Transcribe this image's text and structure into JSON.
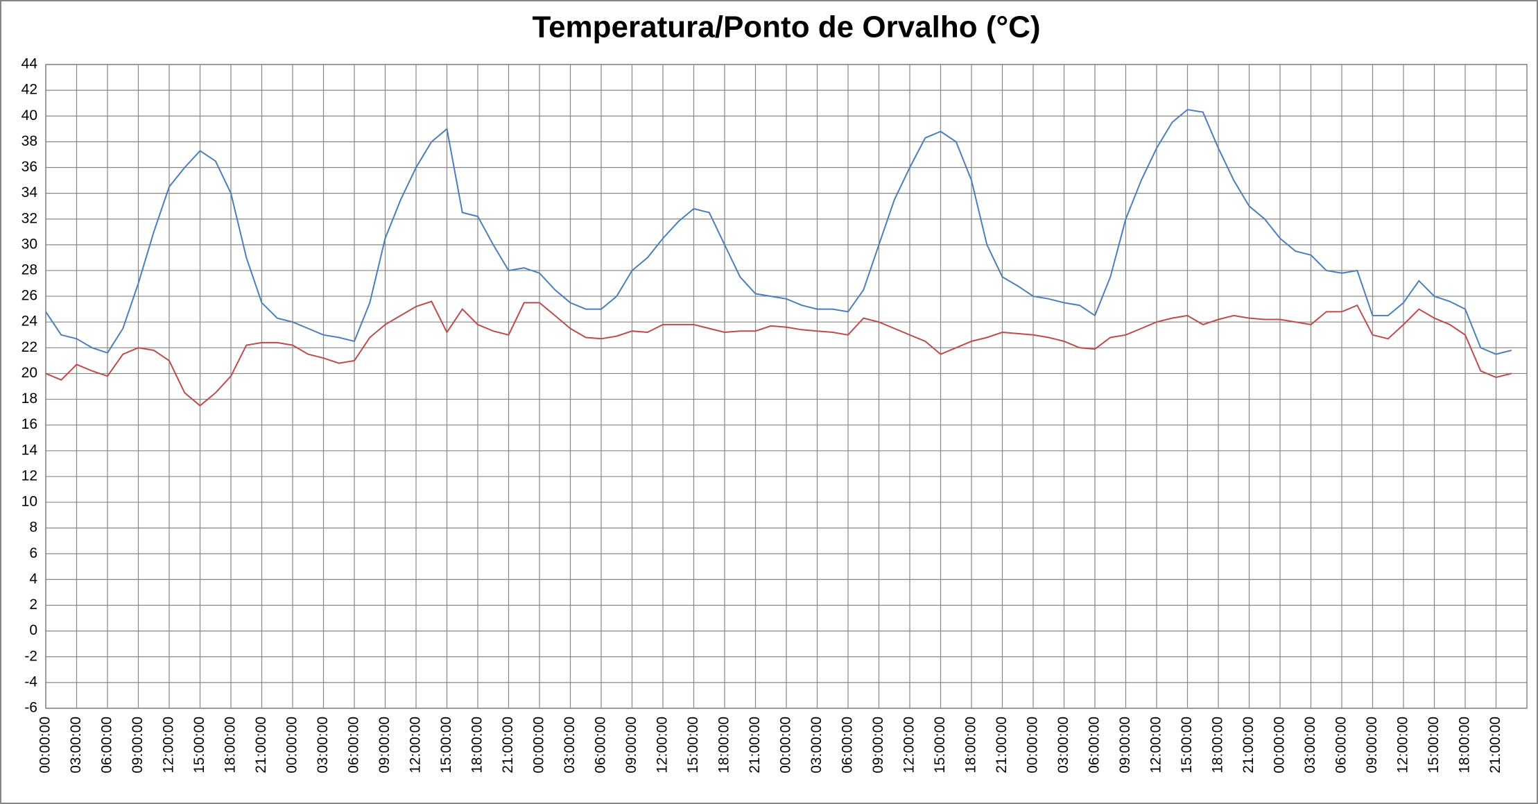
{
  "chart_data": {
    "type": "line",
    "title": "Temperatura/Ponto de Orvalho (°C)",
    "categories": [
      "00:00:00",
      null,
      "03:00:00",
      null,
      "06:00:00",
      null,
      "09:00:00",
      null,
      "12:00:00",
      null,
      "15:00:00",
      null,
      "18:00:00",
      null,
      "21:00:00",
      null,
      "00:00:00",
      null,
      "03:00:00",
      null,
      "06:00:00",
      null,
      "09:00:00",
      null,
      "12:00:00",
      null,
      "15:00:00",
      null,
      "18:00:00",
      null,
      "21:00:00",
      null,
      "00:00:00",
      null,
      "03:00:00",
      null,
      "06:00:00",
      null,
      "09:00:00",
      null,
      "12:00:00",
      null,
      "15:00:00",
      null,
      "18:00:00",
      null,
      "21:00:00",
      null,
      "00:00:00",
      null,
      "03:00:00",
      null,
      "06:00:00",
      null,
      "09:00:00",
      null,
      "12:00:00",
      null,
      "15:00:00",
      null,
      "18:00:00",
      null,
      "21:00:00",
      null,
      "00:00:00",
      null,
      "03:00:00",
      null,
      "06:00:00",
      null,
      "09:00:00",
      null,
      "12:00:00",
      null,
      "15:00:00",
      null,
      "18:00:00",
      null,
      "21:00:00",
      null,
      "00:00:00",
      null,
      "03:00:00",
      null,
      "06:00:00",
      null,
      "09:00:00",
      null,
      "12:00:00",
      null,
      "15:00:00",
      null,
      "18:00:00",
      null,
      "21:00:00",
      null
    ],
    "series": [
      {
        "color": "#4a7ebb",
        "values": [
          24.8,
          23,
          22.7,
          22,
          21.6,
          23.5,
          27,
          31,
          34.5,
          36,
          37.3,
          36.5,
          34,
          29,
          25.5,
          24.3,
          24,
          23.5,
          23,
          22.8,
          22.5,
          25.5,
          30.5,
          33.5,
          36,
          38,
          39,
          32.5,
          32.2,
          30,
          28,
          28.2,
          27.8,
          26.5,
          25.5,
          25,
          25,
          26,
          28,
          29,
          30.5,
          31.8,
          32.8,
          32.5,
          30,
          27.5,
          26.2,
          26,
          25.8,
          25.3,
          25,
          25,
          24.8,
          26.5,
          30,
          33.5,
          36,
          38.3,
          38.8,
          38,
          35,
          30,
          27.5,
          26.8,
          26,
          25.8,
          25.5,
          25.3,
          24.5,
          27.5,
          32,
          35,
          37.5,
          39.5,
          40.5,
          40.3,
          37.5,
          35,
          33,
          32,
          30.5,
          29.5,
          29.2,
          28,
          27.8,
          28,
          24.5,
          24.5,
          25.5,
          27.2,
          26,
          25.6,
          25,
          22,
          21.5,
          21.8
        ]
      },
      {
        "color": "#be4b48",
        "values": [
          20,
          19.5,
          20.7,
          20.2,
          19.8,
          21.5,
          22,
          21.8,
          21,
          18.5,
          17.5,
          18.5,
          19.8,
          22.2,
          22.4,
          22.4,
          22.2,
          21.5,
          21.2,
          20.8,
          21,
          22.8,
          23.8,
          24.5,
          25.2,
          25.6,
          23.2,
          25,
          23.8,
          23.3,
          23,
          25.5,
          25.5,
          24.5,
          23.5,
          22.8,
          22.7,
          22.9,
          23.3,
          23.2,
          23.8,
          23.8,
          23.8,
          23.5,
          23.2,
          23.3,
          23.3,
          23.7,
          23.6,
          23.4,
          23.3,
          23.2,
          23,
          24.3,
          24,
          23.5,
          23,
          22.5,
          21.5,
          22,
          22.5,
          22.8,
          23.2,
          23.1,
          23,
          22.8,
          22.5,
          22,
          21.9,
          22.8,
          23,
          23.5,
          24,
          24.3,
          24.5,
          23.8,
          24.2,
          24.5,
          24.3,
          24.2,
          24.2,
          24,
          23.8,
          24.8,
          24.8,
          25.3,
          23,
          22.7,
          23.8,
          25,
          24.3,
          23.8,
          23,
          20.2,
          19.7,
          20
        ]
      }
    ],
    "ylim": [
      -6,
      44
    ],
    "yticks": [
      -6,
      -4,
      -2,
      0,
      2,
      4,
      6,
      8,
      10,
      12,
      14,
      16,
      18,
      20,
      22,
      24,
      26,
      28,
      30,
      32,
      34,
      36,
      38,
      40,
      42,
      44
    ],
    "grid": true
  }
}
